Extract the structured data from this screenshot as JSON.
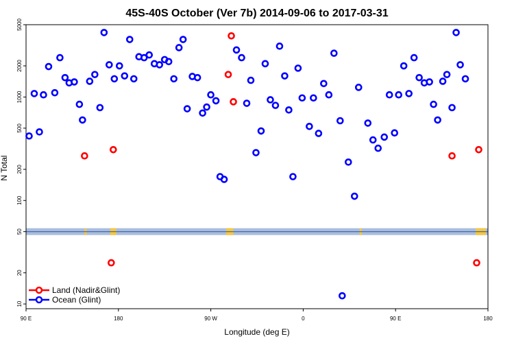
{
  "chart_data": {
    "type": "scatter",
    "title": "45S-40S October (Ver 7b)   2014-09-06 to 2017-03-31",
    "xlabel": "Longitude (deg E)",
    "ylabel": "N Total",
    "y_scale": "log",
    "ylim": [
      9,
      5000
    ],
    "xlim": [
      90,
      540
    ],
    "x_ticks": [
      {
        "value": 90,
        "label": "90 E"
      },
      {
        "value": 180,
        "label": "180"
      },
      {
        "value": 270,
        "label": "90 W"
      },
      {
        "value": 360,
        "label": "0"
      },
      {
        "value": 450,
        "label": "90 E"
      },
      {
        "value": 540,
        "label": "180"
      }
    ],
    "y_ticks": [
      {
        "value": 10,
        "label": "10"
      },
      {
        "value": 20,
        "label": "20"
      },
      {
        "value": 50,
        "label": "50"
      },
      {
        "value": 100,
        "label": "100"
      },
      {
        "value": 200,
        "label": "200"
      },
      {
        "value": 500,
        "label": "500"
      },
      {
        "value": 1000,
        "label": "1000"
      },
      {
        "value": 2000,
        "label": "2000"
      },
      {
        "value": 5000,
        "label": "5000"
      }
    ],
    "band": {
      "value": 50,
      "color": "#a9bedc",
      "line_color": "#3d5ea8",
      "land_color": "#f5c842"
    },
    "land_segments": [
      [
        147,
        149
      ],
      [
        172,
        178
      ],
      [
        285,
        292
      ],
      [
        415,
        417
      ],
      [
        528,
        538
      ]
    ],
    "grid": false,
    "legend_position": "bottom-left",
    "series": [
      {
        "name": "Land (Nadir&Glint)",
        "color": "#ff0000",
        "points": [
          [
            147,
            270
          ],
          [
            173,
            25
          ],
          [
            175,
            310
          ],
          [
            287,
            1650
          ],
          [
            290,
            3900
          ],
          [
            292,
            900
          ],
          [
            505,
            270
          ],
          [
            529,
            25
          ],
          [
            531,
            310
          ]
        ]
      },
      {
        "name": "Ocean (Glint)",
        "color": "#0000ff",
        "points": [
          [
            93,
            420
          ],
          [
            98,
            1080
          ],
          [
            103,
            460
          ],
          [
            107,
            1050
          ],
          [
            112,
            1970
          ],
          [
            118,
            1100
          ],
          [
            123,
            2400
          ],
          [
            128,
            1540
          ],
          [
            132,
            1370
          ],
          [
            137,
            1400
          ],
          [
            142,
            850
          ],
          [
            145,
            600
          ],
          [
            152,
            1420
          ],
          [
            157,
            1650
          ],
          [
            162,
            790
          ],
          [
            166,
            4200
          ],
          [
            171,
            2050
          ],
          [
            176,
            1500
          ],
          [
            181,
            2000
          ],
          [
            186,
            1600
          ],
          [
            191,
            3600
          ],
          [
            195,
            1500
          ],
          [
            200,
            2450
          ],
          [
            205,
            2400
          ],
          [
            210,
            2550
          ],
          [
            215,
            2100
          ],
          [
            220,
            2050
          ],
          [
            225,
            2300
          ],
          [
            229,
            2200
          ],
          [
            234,
            1500
          ],
          [
            239,
            3000
          ],
          [
            243,
            3600
          ],
          [
            247,
            770
          ],
          [
            252,
            1580
          ],
          [
            257,
            1540
          ],
          [
            262,
            700
          ],
          [
            266,
            800
          ],
          [
            270,
            1050
          ],
          [
            275,
            920
          ],
          [
            279,
            170
          ],
          [
            283,
            160
          ],
          [
            295,
            2850
          ],
          [
            300,
            2400
          ],
          [
            305,
            870
          ],
          [
            309,
            1450
          ],
          [
            314,
            290
          ],
          [
            319,
            470
          ],
          [
            323,
            2100
          ],
          [
            328,
            940
          ],
          [
            333,
            830
          ],
          [
            337,
            3100
          ],
          [
            342,
            1600
          ],
          [
            346,
            750
          ],
          [
            350,
            170
          ],
          [
            355,
            1900
          ],
          [
            359,
            980
          ],
          [
            366,
            520
          ],
          [
            370,
            980
          ],
          [
            375,
            445
          ],
          [
            380,
            1350
          ],
          [
            385,
            1050
          ],
          [
            390,
            2650
          ],
          [
            396,
            590
          ],
          [
            404,
            235
          ],
          [
            410,
            110
          ],
          [
            414,
            1240
          ],
          [
            423,
            560
          ],
          [
            428,
            385
          ],
          [
            433,
            320
          ],
          [
            439,
            410
          ],
          [
            444,
            1050
          ],
          [
            449,
            450
          ],
          [
            453,
            1050
          ],
          [
            458,
            2000
          ],
          [
            463,
            1080
          ],
          [
            468,
            2400
          ],
          [
            473,
            1540
          ],
          [
            478,
            1370
          ],
          [
            483,
            1400
          ],
          [
            487,
            850
          ],
          [
            491,
            600
          ],
          [
            496,
            1420
          ],
          [
            500,
            1650
          ],
          [
            505,
            790
          ],
          [
            509,
            4200
          ],
          [
            513,
            2050
          ],
          [
            518,
            1500
          ],
          [
            398,
            12
          ]
        ]
      }
    ]
  }
}
